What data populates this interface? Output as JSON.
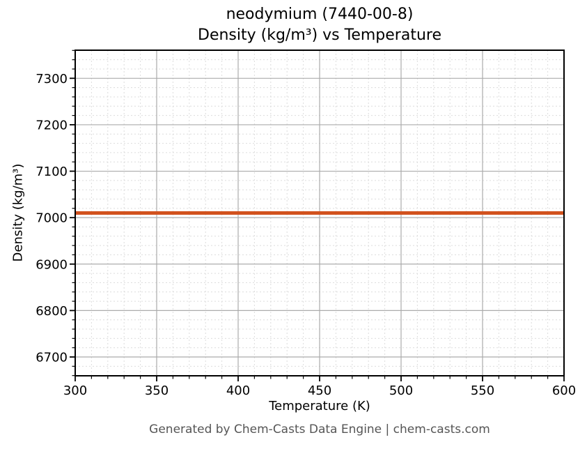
{
  "figure": {
    "title_line1": "neodymium (7440-00-8)",
    "title_line2": "Density (kg/m³) vs Temperature",
    "footer": "Generated by Chem-Casts Data Engine | chem-casts.com",
    "footer_color": "#555555",
    "background_color": "#ffffff",
    "spine_color": "#000000"
  },
  "chart_data": {
    "type": "line",
    "title": "neodymium (7440-00-8) Density (kg/m³) vs Temperature",
    "xlabel": "Temperature (K)",
    "ylabel": "Density (kg/m³)",
    "x": [
      300,
      600
    ],
    "series": [
      {
        "name": "density",
        "values": [
          7010,
          7010
        ],
        "color": "#d2521e",
        "linewidth": 5
      }
    ],
    "xlim": [
      300,
      600
    ],
    "ylim": [
      6659.5,
      7360.5
    ],
    "xticks": [
      300,
      350,
      400,
      450,
      500,
      550,
      600
    ],
    "yticks": [
      6700,
      6800,
      6900,
      7000,
      7100,
      7200,
      7300
    ],
    "x_minor_step": 10,
    "y_minor_step": 20,
    "grid": {
      "major": {
        "style": "solid",
        "color": "#ababab"
      },
      "minor": {
        "style": "dashed",
        "color": "#dcdcdc"
      }
    },
    "legend": "none"
  }
}
